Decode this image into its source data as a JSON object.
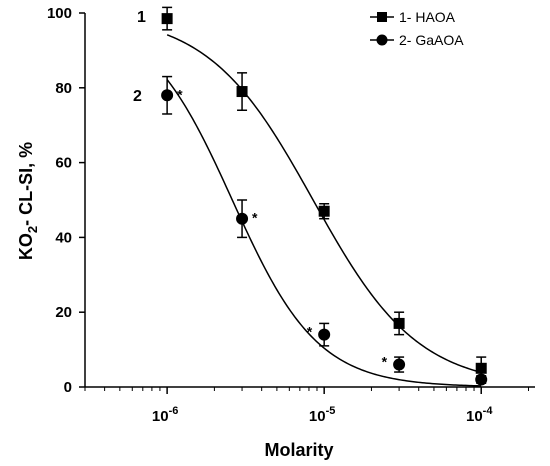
{
  "chart_data": {
    "type": "scatter",
    "xlabel": "Molarity",
    "ylabel_main": "KO",
    "ylabel_sub": "2",
    "ylabel_rest": "- CL-SI, %",
    "x_scale": "log",
    "xlim": [
      3e-07,
      0.00022
    ],
    "ylim": [
      0,
      100
    ],
    "x_ticks": [
      {
        "value": 1e-06,
        "base": "10",
        "exp": "-6"
      },
      {
        "value": 1e-05,
        "base": "10",
        "exp": "-5"
      },
      {
        "value": 0.0001,
        "base": "10",
        "exp": "-4"
      }
    ],
    "y_ticks": [
      0,
      20,
      40,
      60,
      80,
      100
    ],
    "grid": false,
    "legend_position": "top-right",
    "series": [
      {
        "name": "1- HAOA",
        "curve_label": "1",
        "marker": "square",
        "points": [
          {
            "x": 1e-06,
            "y": 98.5,
            "err": 3,
            "star": ""
          },
          {
            "x": 3e-06,
            "y": 79,
            "err": 5,
            "star": ""
          },
          {
            "x": 1e-05,
            "y": 47,
            "err": 2,
            "star": ""
          },
          {
            "x": 3e-05,
            "y": 17,
            "err": 3,
            "star": ""
          },
          {
            "x": 0.0001,
            "y": 5,
            "err": 3,
            "star": ""
          }
        ],
        "fit_ic50": 8.5e-06,
        "fit_hill": 1.3
      },
      {
        "name": "2- GaAOA",
        "curve_label": "2",
        "marker": "circle",
        "points": [
          {
            "x": 1e-06,
            "y": 78,
            "err": 5,
            "star": "*"
          },
          {
            "x": 3e-06,
            "y": 45,
            "err": 5,
            "star": "*"
          },
          {
            "x": 1e-05,
            "y": 14,
            "err": 3,
            "star": "*"
          },
          {
            "x": 3e-05,
            "y": 6,
            "err": 2,
            "star": "*"
          },
          {
            "x": 0.0001,
            "y": 2,
            "err": 1,
            "star": ""
          }
        ],
        "fit_ic50": 2.6e-06,
        "fit_hill": 1.6
      }
    ]
  }
}
